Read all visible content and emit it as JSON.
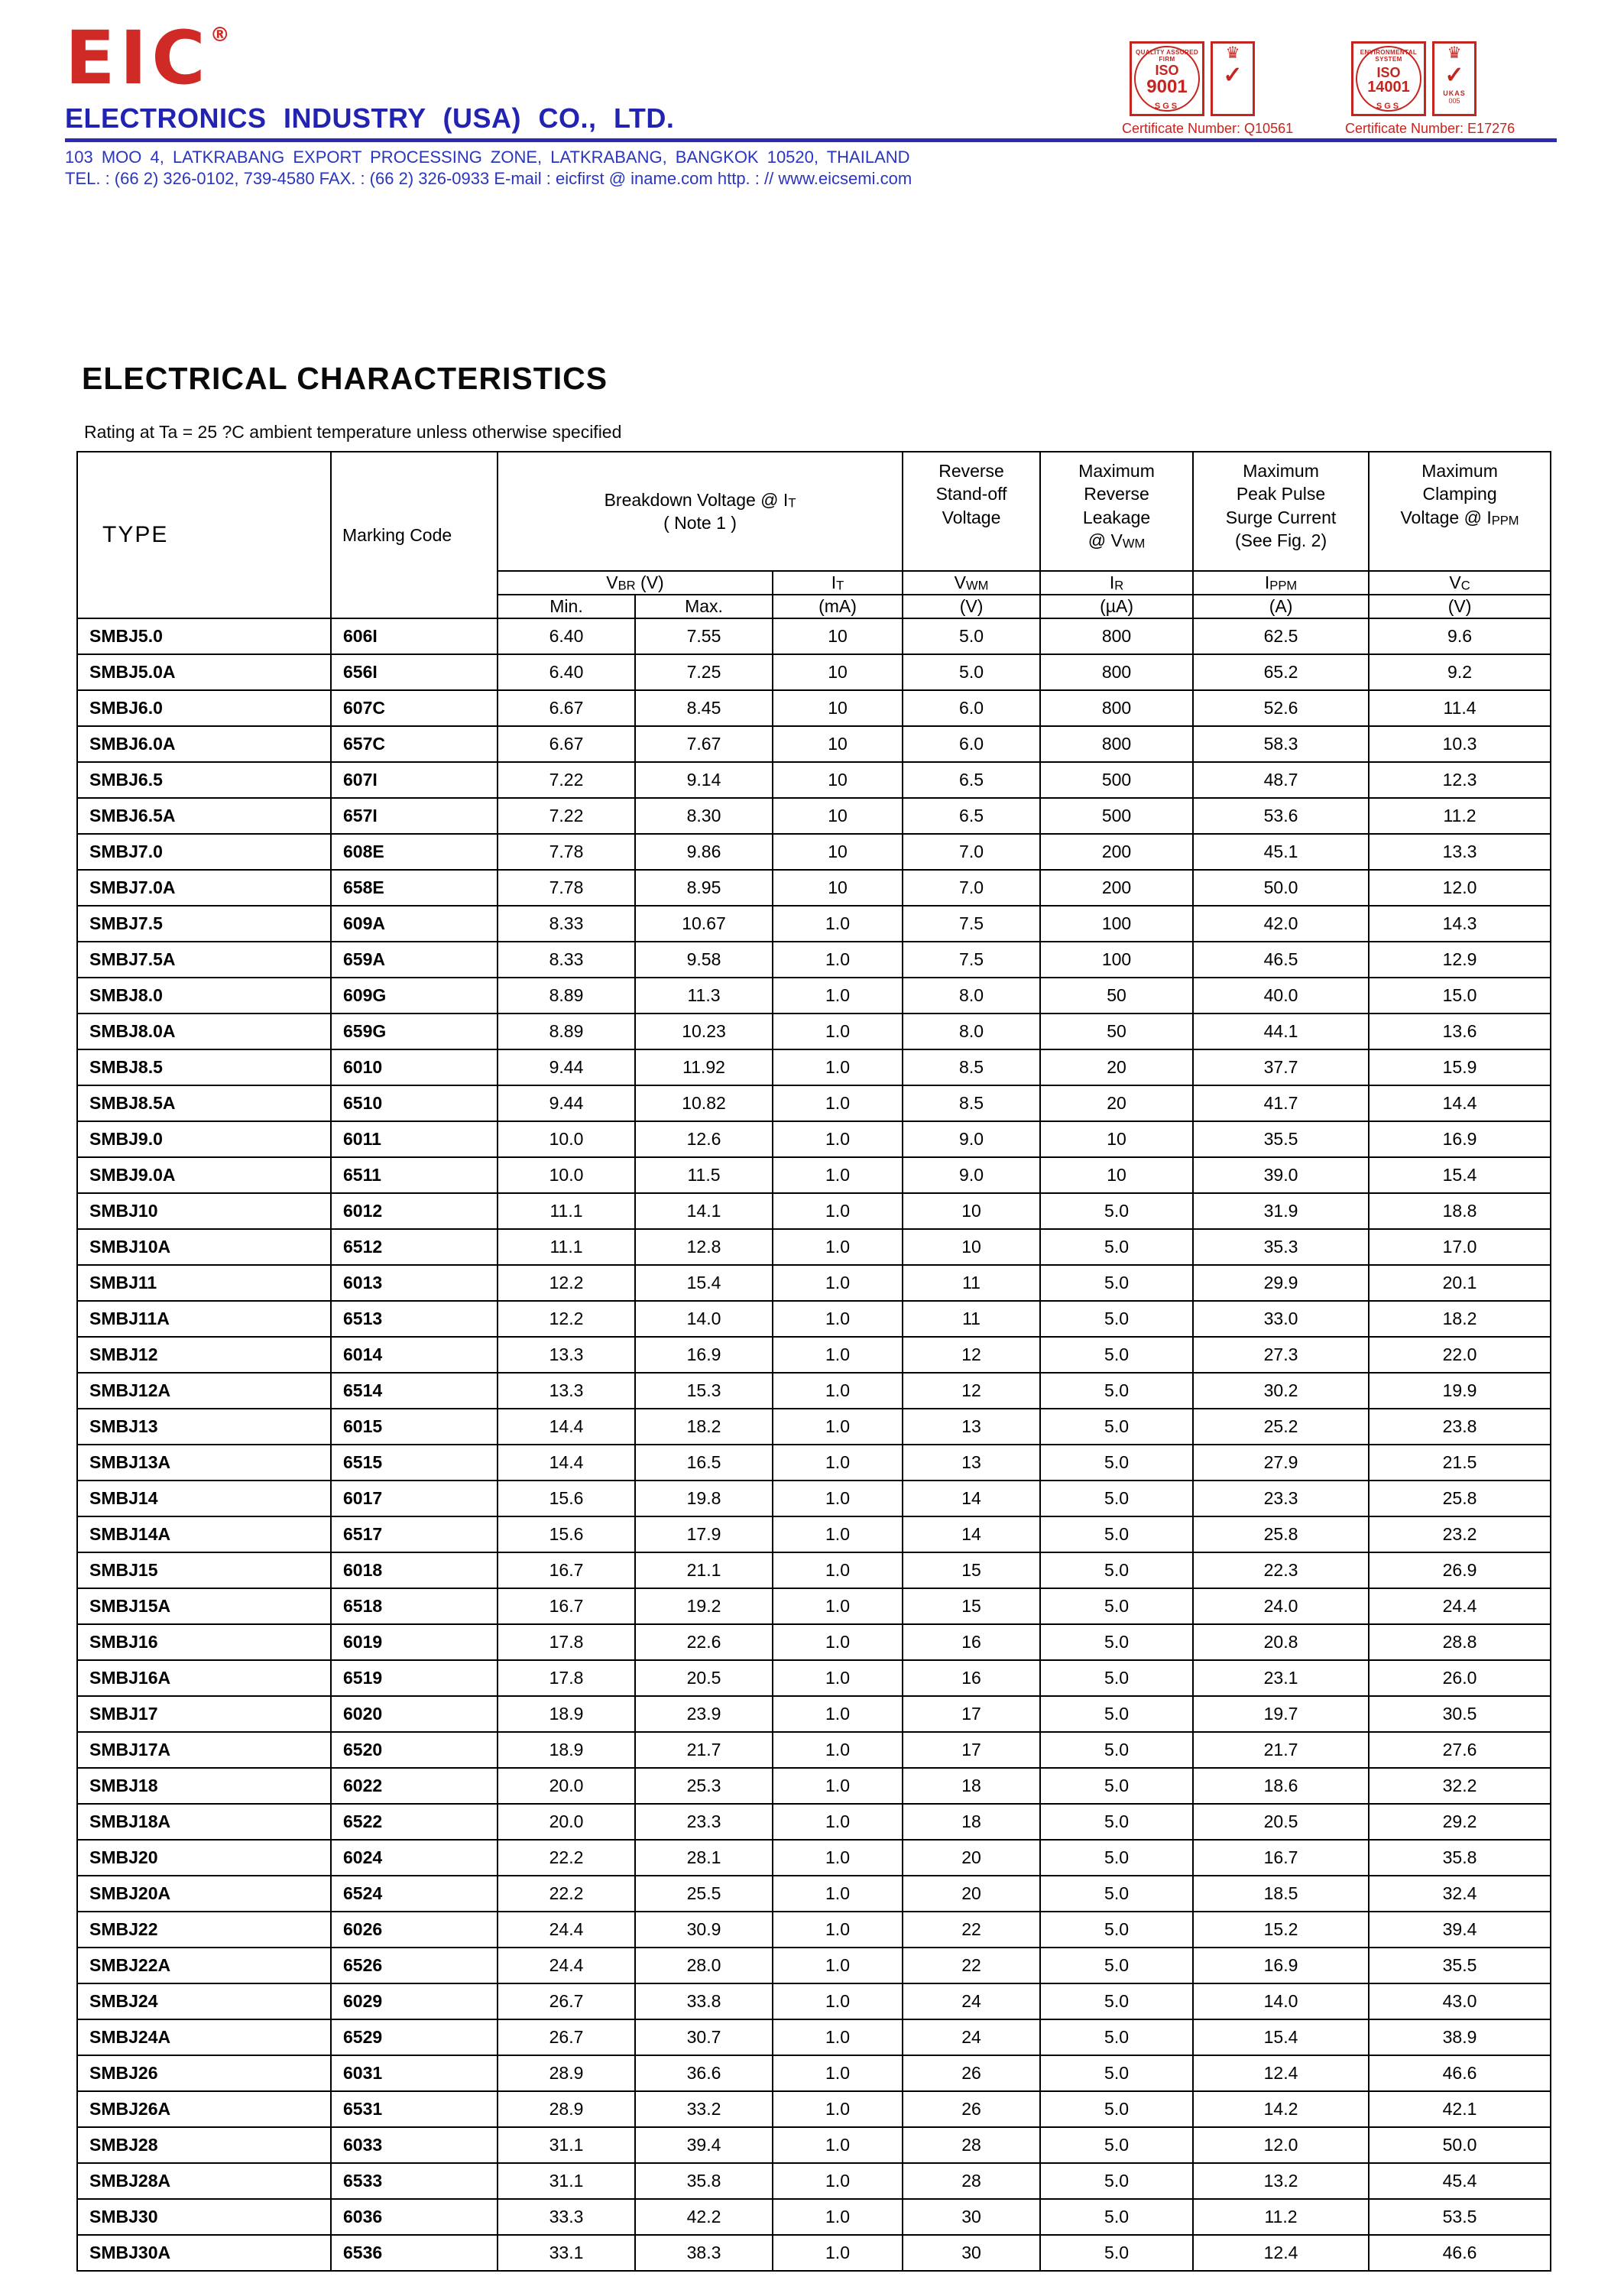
{
  "header": {
    "logo_text": "EIC",
    "registered_mark": "®",
    "company_name": "ELECTRONICS INDUSTRY (USA) CO., LTD.",
    "address": "103 MOO 4, LATKRABANG EXPORT PROCESSING ZONE, LATKRABANG, BANGKOK 10520, THAILAND",
    "contact": "TEL. : (66 2) 326-0102, 739-4580    FAX. : (66 2) 326-0933   E-mail : eicfirst @ iname.com   http. : // www.eicsemi.com",
    "colors": {
      "brand_red": "#cf2a26",
      "brand_blue": "#2323b2"
    },
    "stamps": [
      {
        "arc": "QUALITY ASSURED FIRM",
        "iso": "ISO",
        "number": "9001",
        "org": "SGS",
        "check": "✓",
        "crown": "♛",
        "side_label": "",
        "side_num": "",
        "certificate": "Certificate Number: Q10561"
      },
      {
        "arc": "ENVIRONMENTAL SYSTEM",
        "iso": "ISO",
        "number": "14001",
        "org": "SGS",
        "check": "✓",
        "crown": "♛",
        "side_label": "UKAS",
        "side_num": "005",
        "certificate": "Certificate Number: E17276"
      }
    ]
  },
  "section": {
    "title": "ELECTRICAL CHARACTERISTICS",
    "subtitle": "Rating at Ta = 25 ?C ambient temperature unless otherwise specified"
  },
  "table": {
    "header": {
      "type": "TYPE",
      "marking": "Marking Code",
      "group_breakdown": "Breakdown Voltage @  I~T~\n( Note 1 )",
      "group_standoff": "Reverse\nStand-off\nVoltage",
      "group_leakage": "Maximum\nReverse\nLeakage\n@ V~WM~",
      "group_surge": "Maximum\nPeak Pulse\nSurge Current\n(See Fig. 2)",
      "group_clamping": "Maximum\nClamping\nVoltage @ I~PPM~",
      "vbr": "V~BR~ (V)",
      "it": "I~T~",
      "vwm": "V~WM~",
      "ir": "I~R~",
      "ippm": "I~PPM~",
      "vc": "V~C~",
      "min": "Min.",
      "max": "Max.",
      "unit_ma": "(mA)",
      "unit_v": "(V)",
      "unit_ua": "(µA)",
      "unit_a": "(A)",
      "unit_v2": "(V)"
    },
    "column_keys": [
      "type",
      "marking-code",
      "vbr-min",
      "vbr-max",
      "it-ma",
      "vwm-v",
      "ir-ua",
      "ippm-a",
      "vc-v"
    ],
    "rows": [
      [
        "SMBJ5.0",
        "606I",
        "6.40",
        "7.55",
        "10",
        "5.0",
        "800",
        "62.5",
        "9.6"
      ],
      [
        "SMBJ5.0A",
        "656I",
        "6.40",
        "7.25",
        "10",
        "5.0",
        "800",
        "65.2",
        "9.2"
      ],
      [
        "SMBJ6.0",
        "607C",
        "6.67",
        "8.45",
        "10",
        "6.0",
        "800",
        "52.6",
        "11.4"
      ],
      [
        "SMBJ6.0A",
        "657C",
        "6.67",
        "7.67",
        "10",
        "6.0",
        "800",
        "58.3",
        "10.3"
      ],
      [
        "SMBJ6.5",
        "607I",
        "7.22",
        "9.14",
        "10",
        "6.5",
        "500",
        "48.7",
        "12.3"
      ],
      [
        "SMBJ6.5A",
        "657I",
        "7.22",
        "8.30",
        "10",
        "6.5",
        "500",
        "53.6",
        "11.2"
      ],
      [
        "SMBJ7.0",
        "608E",
        "7.78",
        "9.86",
        "10",
        "7.0",
        "200",
        "45.1",
        "13.3"
      ],
      [
        "SMBJ7.0A",
        "658E",
        "7.78",
        "8.95",
        "10",
        "7.0",
        "200",
        "50.0",
        "12.0"
      ],
      [
        "SMBJ7.5",
        "609A",
        "8.33",
        "10.67",
        "1.0",
        "7.5",
        "100",
        "42.0",
        "14.3"
      ],
      [
        "SMBJ7.5A",
        "659A",
        "8.33",
        "9.58",
        "1.0",
        "7.5",
        "100",
        "46.5",
        "12.9"
      ],
      [
        "SMBJ8.0",
        "609G",
        "8.89",
        "11.3",
        "1.0",
        "8.0",
        "50",
        "40.0",
        "15.0"
      ],
      [
        "SMBJ8.0A",
        "659G",
        "8.89",
        "10.23",
        "1.0",
        "8.0",
        "50",
        "44.1",
        "13.6"
      ],
      [
        "SMBJ8.5",
        "6010",
        "9.44",
        "11.92",
        "1.0",
        "8.5",
        "20",
        "37.7",
        "15.9"
      ],
      [
        "SMBJ8.5A",
        "6510",
        "9.44",
        "10.82",
        "1.0",
        "8.5",
        "20",
        "41.7",
        "14.4"
      ],
      [
        "SMBJ9.0",
        "6011",
        "10.0",
        "12.6",
        "1.0",
        "9.0",
        "10",
        "35.5",
        "16.9"
      ],
      [
        "SMBJ9.0A",
        "6511",
        "10.0",
        "11.5",
        "1.0",
        "9.0",
        "10",
        "39.0",
        "15.4"
      ],
      [
        "SMBJ10",
        "6012",
        "11.1",
        "14.1",
        "1.0",
        "10",
        "5.0",
        "31.9",
        "18.8"
      ],
      [
        "SMBJ10A",
        "6512",
        "11.1",
        "12.8",
        "1.0",
        "10",
        "5.0",
        "35.3",
        "17.0"
      ],
      [
        "SMBJ11",
        "6013",
        "12.2",
        "15.4",
        "1.0",
        "11",
        "5.0",
        "29.9",
        "20.1"
      ],
      [
        "SMBJ11A",
        "6513",
        "12.2",
        "14.0",
        "1.0",
        "11",
        "5.0",
        "33.0",
        "18.2"
      ],
      [
        "SMBJ12",
        "6014",
        "13.3",
        "16.9",
        "1.0",
        "12",
        "5.0",
        "27.3",
        "22.0"
      ],
      [
        "SMBJ12A",
        "6514",
        "13.3",
        "15.3",
        "1.0",
        "12",
        "5.0",
        "30.2",
        "19.9"
      ],
      [
        "SMBJ13",
        "6015",
        "14.4",
        "18.2",
        "1.0",
        "13",
        "5.0",
        "25.2",
        "23.8"
      ],
      [
        "SMBJ13A",
        "6515",
        "14.4",
        "16.5",
        "1.0",
        "13",
        "5.0",
        "27.9",
        "21.5"
      ],
      [
        "SMBJ14",
        "6017",
        "15.6",
        "19.8",
        "1.0",
        "14",
        "5.0",
        "23.3",
        "25.8"
      ],
      [
        "SMBJ14A",
        "6517",
        "15.6",
        "17.9",
        "1.0",
        "14",
        "5.0",
        "25.8",
        "23.2"
      ],
      [
        "SMBJ15",
        "6018",
        "16.7",
        "21.1",
        "1.0",
        "15",
        "5.0",
        "22.3",
        "26.9"
      ],
      [
        "SMBJ15A",
        "6518",
        "16.7",
        "19.2",
        "1.0",
        "15",
        "5.0",
        "24.0",
        "24.4"
      ],
      [
        "SMBJ16",
        "6019",
        "17.8",
        "22.6",
        "1.0",
        "16",
        "5.0",
        "20.8",
        "28.8"
      ],
      [
        "SMBJ16A",
        "6519",
        "17.8",
        "20.5",
        "1.0",
        "16",
        "5.0",
        "23.1",
        "26.0"
      ],
      [
        "SMBJ17",
        "6020",
        "18.9",
        "23.9",
        "1.0",
        "17",
        "5.0",
        "19.7",
        "30.5"
      ],
      [
        "SMBJ17A",
        "6520",
        "18.9",
        "21.7",
        "1.0",
        "17",
        "5.0",
        "21.7",
        "27.6"
      ],
      [
        "SMBJ18",
        "6022",
        "20.0",
        "25.3",
        "1.0",
        "18",
        "5.0",
        "18.6",
        "32.2"
      ],
      [
        "SMBJ18A",
        "6522",
        "20.0",
        "23.3",
        "1.0",
        "18",
        "5.0",
        "20.5",
        "29.2"
      ],
      [
        "SMBJ20",
        "6024",
        "22.2",
        "28.1",
        "1.0",
        "20",
        "5.0",
        "16.7",
        "35.8"
      ],
      [
        "SMBJ20A",
        "6524",
        "22.2",
        "25.5",
        "1.0",
        "20",
        "5.0",
        "18.5",
        "32.4"
      ],
      [
        "SMBJ22",
        "6026",
        "24.4",
        "30.9",
        "1.0",
        "22",
        "5.0",
        "15.2",
        "39.4"
      ],
      [
        "SMBJ22A",
        "6526",
        "24.4",
        "28.0",
        "1.0",
        "22",
        "5.0",
        "16.9",
        "35.5"
      ],
      [
        "SMBJ24",
        "6029",
        "26.7",
        "33.8",
        "1.0",
        "24",
        "5.0",
        "14.0",
        "43.0"
      ],
      [
        "SMBJ24A",
        "6529",
        "26.7",
        "30.7",
        "1.0",
        "24",
        "5.0",
        "15.4",
        "38.9"
      ],
      [
        "SMBJ26",
        "6031",
        "28.9",
        "36.6",
        "1.0",
        "26",
        "5.0",
        "12.4",
        "46.6"
      ],
      [
        "SMBJ26A",
        "6531",
        "28.9",
        "33.2",
        "1.0",
        "26",
        "5.0",
        "14.2",
        "42.1"
      ],
      [
        "SMBJ28",
        "6033",
        "31.1",
        "39.4",
        "1.0",
        "28",
        "5.0",
        "12.0",
        "50.0"
      ],
      [
        "SMBJ28A",
        "6533",
        "31.1",
        "35.8",
        "1.0",
        "28",
        "5.0",
        "13.2",
        "45.4"
      ],
      [
        "SMBJ30",
        "6036",
        "33.3",
        "42.2",
        "1.0",
        "30",
        "5.0",
        "11.2",
        "53.5"
      ],
      [
        "SMBJ30A",
        "6536",
        "33.1",
        "38.3",
        "1.0",
        "30",
        "5.0",
        "12.4",
        "46.6"
      ]
    ]
  }
}
